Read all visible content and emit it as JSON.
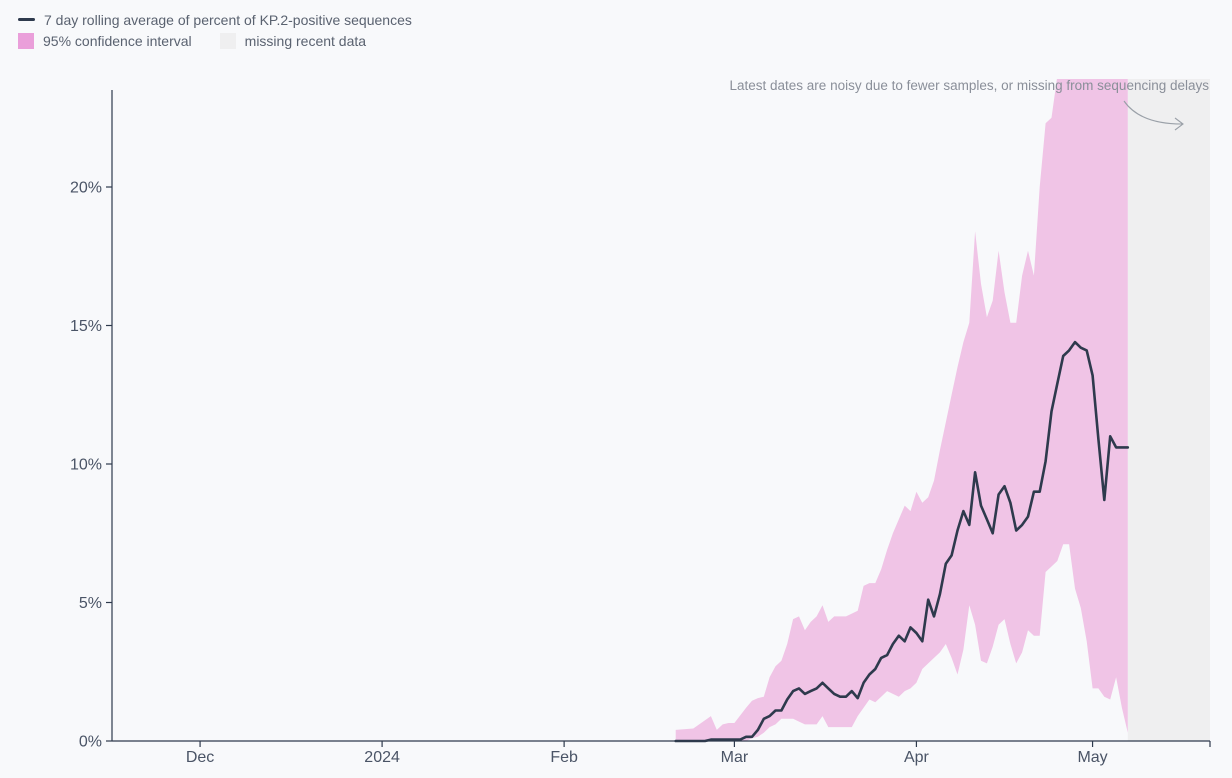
{
  "legend": {
    "line_label": "7 day rolling average of percent of KP.2-positive sequences",
    "ci_label": "95% confidence interval",
    "missing_label": "missing recent data"
  },
  "colors": {
    "line": "#2e3a4d",
    "ci_fill": "#f0c4e6",
    "ci_swatch": "#ea9fda",
    "missing_fill": "#efeff0",
    "axis": "#2e3a4d",
    "background": "#f8f9fb"
  },
  "annotation": {
    "text": "Latest dates are noisy due to fewer samples, or missing from sequencing delays",
    "arrow_icon": "curved-arrow-right-icon"
  },
  "chart_data": {
    "type": "line",
    "title": "",
    "xlabel": "",
    "ylabel": "",
    "x_start": "2023-11-16",
    "x_end": "2024-05-21",
    "ylim": [
      0,
      23.5
    ],
    "y_ticks": [
      0,
      5,
      10,
      15,
      20
    ],
    "y_tick_labels": [
      "0%",
      "5%",
      "10%",
      "15%",
      "20%"
    ],
    "x_ticks": [
      {
        "date": "2023-12-01",
        "label": "Dec"
      },
      {
        "date": "2024-01-01",
        "label": "2024"
      },
      {
        "date": "2024-02-01",
        "label": "Feb"
      },
      {
        "date": "2024-03-01",
        "label": "Mar"
      },
      {
        "date": "2024-04-01",
        "label": "Apr"
      },
      {
        "date": "2024-05-01",
        "label": "May"
      }
    ],
    "missing_data_start": "2024-05-07",
    "grid": false,
    "legend_position": "top-left",
    "series": [
      {
        "name": "7 day rolling average of percent of KP.2-positive sequences",
        "x": [
          "2024-02-20",
          "2024-02-21",
          "2024-02-22",
          "2024-02-23",
          "2024-02-24",
          "2024-02-25",
          "2024-02-26",
          "2024-02-27",
          "2024-02-28",
          "2024-02-29",
          "2024-03-01",
          "2024-03-02",
          "2024-03-03",
          "2024-03-04",
          "2024-03-05",
          "2024-03-06",
          "2024-03-07",
          "2024-03-08",
          "2024-03-09",
          "2024-03-10",
          "2024-03-11",
          "2024-03-12",
          "2024-03-13",
          "2024-03-14",
          "2024-03-15",
          "2024-03-16",
          "2024-03-17",
          "2024-03-18",
          "2024-03-19",
          "2024-03-20",
          "2024-03-21",
          "2024-03-22",
          "2024-03-23",
          "2024-03-24",
          "2024-03-25",
          "2024-03-26",
          "2024-03-27",
          "2024-03-28",
          "2024-03-29",
          "2024-03-30",
          "2024-03-31",
          "2024-04-01",
          "2024-04-02",
          "2024-04-03",
          "2024-04-04",
          "2024-04-05",
          "2024-04-06",
          "2024-04-07",
          "2024-04-08",
          "2024-04-09",
          "2024-04-10",
          "2024-04-11",
          "2024-04-12",
          "2024-04-13",
          "2024-04-14",
          "2024-04-15",
          "2024-04-16",
          "2024-04-17",
          "2024-04-18",
          "2024-04-19",
          "2024-04-20",
          "2024-04-21",
          "2024-04-22",
          "2024-04-23",
          "2024-04-24",
          "2024-04-25",
          "2024-04-26",
          "2024-04-27",
          "2024-04-28",
          "2024-04-29",
          "2024-04-30",
          "2024-05-01",
          "2024-05-02",
          "2024-05-03",
          "2024-05-04",
          "2024-05-05",
          "2024-05-06",
          "2024-05-07"
        ],
        "values": [
          0.0,
          0.0,
          0.0,
          0.0,
          0.0,
          0.0,
          0.05,
          0.05,
          0.05,
          0.05,
          0.05,
          0.05,
          0.15,
          0.15,
          0.4,
          0.8,
          0.9,
          1.1,
          1.1,
          1.5,
          1.8,
          1.9,
          1.7,
          1.8,
          1.9,
          2.1,
          1.9,
          1.7,
          1.6,
          1.6,
          1.8,
          1.55,
          2.1,
          2.4,
          2.6,
          3.0,
          3.1,
          3.5,
          3.8,
          3.6,
          4.1,
          3.9,
          3.6,
          5.1,
          4.5,
          5.3,
          6.4,
          6.7,
          7.6,
          8.3,
          7.8,
          9.7,
          8.5,
          8.0,
          7.5,
          8.9,
          9.2,
          8.6,
          7.6,
          7.8,
          8.1,
          9.0,
          9.0,
          10.1,
          11.9,
          12.9,
          13.9,
          14.1,
          14.4,
          14.2,
          14.1,
          13.2,
          10.9,
          8.7,
          11.0,
          10.6,
          10.6,
          10.6
        ]
      }
    ],
    "confidence_interval": {
      "name": "95% confidence interval",
      "x": [
        "2024-02-20",
        "2024-02-23",
        "2024-02-26",
        "2024-02-27",
        "2024-02-28",
        "2024-02-29",
        "2024-03-01",
        "2024-03-03",
        "2024-03-04",
        "2024-03-05",
        "2024-03-06",
        "2024-03-07",
        "2024-03-08",
        "2024-03-09",
        "2024-03-10",
        "2024-03-11",
        "2024-03-12",
        "2024-03-13",
        "2024-03-14",
        "2024-03-15",
        "2024-03-16",
        "2024-03-17",
        "2024-03-18",
        "2024-03-19",
        "2024-03-20",
        "2024-03-21",
        "2024-03-22",
        "2024-03-23",
        "2024-03-24",
        "2024-03-25",
        "2024-03-26",
        "2024-03-27",
        "2024-03-28",
        "2024-03-29",
        "2024-03-30",
        "2024-03-31",
        "2024-04-01",
        "2024-04-02",
        "2024-04-03",
        "2024-04-04",
        "2024-04-05",
        "2024-04-06",
        "2024-04-07",
        "2024-04-08",
        "2024-04-09",
        "2024-04-10",
        "2024-04-11",
        "2024-04-12",
        "2024-04-13",
        "2024-04-14",
        "2024-04-15",
        "2024-04-16",
        "2024-04-17",
        "2024-04-18",
        "2024-04-19",
        "2024-04-20",
        "2024-04-21",
        "2024-04-22",
        "2024-04-23",
        "2024-04-24",
        "2024-04-25",
        "2024-04-26",
        "2024-04-27",
        "2024-04-28",
        "2024-04-29",
        "2024-04-30",
        "2024-05-01",
        "2024-05-02",
        "2024-05-03",
        "2024-05-04",
        "2024-05-05",
        "2024-05-06",
        "2024-05-07"
      ],
      "upper": [
        0.4,
        0.45,
        0.9,
        0.4,
        0.6,
        0.65,
        0.65,
        1.2,
        1.45,
        1.55,
        1.6,
        2.3,
        2.7,
        2.9,
        3.5,
        4.4,
        4.5,
        4.0,
        4.3,
        4.5,
        4.9,
        4.3,
        4.5,
        4.5,
        4.5,
        4.6,
        4.7,
        5.6,
        5.7,
        5.7,
        6.2,
        6.9,
        7.5,
        8.0,
        8.5,
        8.3,
        9.0,
        8.6,
        8.8,
        9.4,
        10.5,
        11.5,
        12.5,
        13.5,
        14.4,
        15.1,
        18.4,
        16.5,
        15.3,
        15.9,
        17.7,
        16.2,
        15.1,
        15.1,
        16.8,
        17.7,
        16.8,
        20.0,
        22.3,
        22.5,
        24,
        24,
        24,
        24,
        24,
        24,
        24,
        24,
        24,
        24,
        24,
        24,
        24
      ],
      "lower": [
        0.0,
        0.0,
        0.0,
        0.0,
        0.0,
        0.0,
        0.0,
        0.0,
        0.1,
        0.15,
        0.3,
        0.5,
        0.6,
        0.8,
        0.8,
        0.8,
        0.7,
        0.6,
        0.6,
        0.6,
        0.9,
        0.5,
        0.5,
        0.5,
        0.5,
        0.5,
        0.9,
        1.2,
        1.5,
        1.4,
        1.6,
        1.8,
        1.7,
        1.6,
        1.8,
        1.9,
        2.1,
        2.6,
        2.8,
        3.0,
        3.2,
        3.5,
        3.0,
        2.4,
        3.3,
        4.9,
        4.2,
        2.9,
        2.8,
        3.4,
        4.2,
        4.4,
        3.5,
        2.8,
        3.2,
        4.0,
        3.8,
        3.8,
        6.1,
        6.3,
        6.5,
        7.1,
        7.1,
        5.5,
        4.8,
        3.6,
        1.9,
        1.9,
        1.6,
        1.5,
        2.3,
        1.2,
        0.3
      ]
    }
  }
}
